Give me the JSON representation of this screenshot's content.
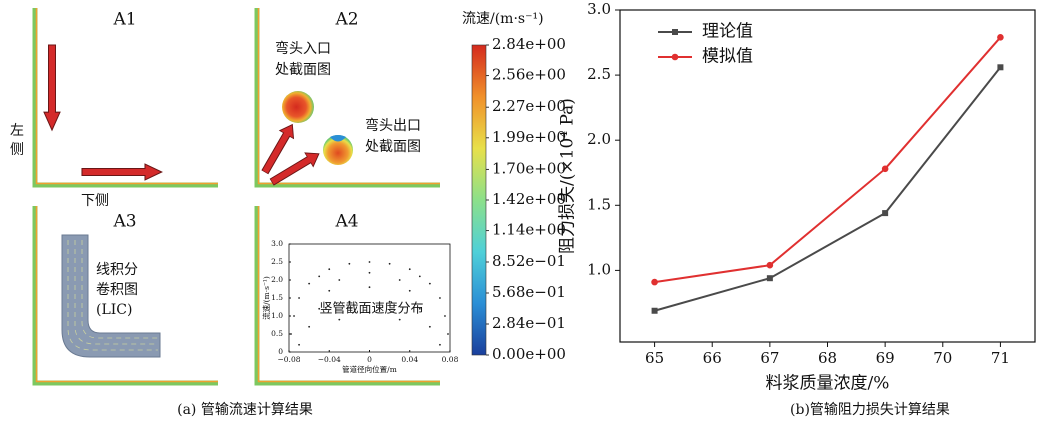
{
  "panel_a": {
    "panels": [
      "A1",
      "A2",
      "A3",
      "A4"
    ],
    "left_side_label": [
      "左",
      "侧"
    ],
    "bottom_side_label": "下侧",
    "inlet_label": [
      "弯头入口",
      "处截面图"
    ],
    "outlet_label": [
      "弯头出口",
      "处截面图"
    ],
    "lic_label": [
      "线积分",
      "卷积图",
      "(LIC)"
    ],
    "caption": "(a) 管输流速计算结果",
    "colorbar": {
      "title": "流速/(m·s⁻¹)",
      "lim": [
        0,
        2.84
      ],
      "colors": [
        "#1a3f9c",
        "#2b8fd6",
        "#4fd0d8",
        "#8ce08a",
        "#e8e04a",
        "#f0902a",
        "#d42a1e"
      ],
      "ticks": [
        {
          "value": 2.84,
          "label": "2.84e+00"
        },
        {
          "value": 2.56,
          "label": "2.56e+00"
        },
        {
          "value": 2.27,
          "label": "2.27e+00"
        },
        {
          "value": 1.99,
          "label": "1.99e+00"
        },
        {
          "value": 1.7,
          "label": "1.70e+00"
        },
        {
          "value": 1.42,
          "label": "1.42e+00"
        },
        {
          "value": 1.14,
          "label": "1.14e+00"
        },
        {
          "value": 0.852,
          "label": "8.52e−01"
        },
        {
          "value": 0.568,
          "label": "5.68e−01"
        },
        {
          "value": 0.284,
          "label": "2.84e−01"
        },
        {
          "value": 0,
          "label": "0.00e+00"
        }
      ]
    }
  },
  "chart_data": [
    {
      "type": "scatter",
      "annotation": "竖管截面速度分布",
      "xlabel": "管道径向位置/m",
      "ylabel": "流速/(m·s⁻¹)",
      "color": "#222222",
      "x": [
        -0.04,
        -0.02,
        0,
        0.02,
        0.04,
        -0.06,
        0.06,
        -0.05,
        0.05,
        -0.03,
        0,
        0.03,
        -0.07,
        0.07,
        -0.04,
        0.04,
        0,
        -0.075,
        0.075,
        -0.05,
        0.05,
        -0.02,
        0.02,
        -0.078,
        0.078,
        -0.06,
        0.06,
        -0.07,
        0.07,
        -0.03,
        0.03,
        0
      ],
      "y": [
        2.3,
        2.45,
        2.5,
        2.45,
        2.3,
        1.9,
        1.9,
        2.1,
        2.1,
        2.0,
        2.2,
        2.0,
        1.5,
        1.5,
        1.7,
        1.7,
        1.8,
        1.0,
        1.0,
        1.2,
        1.2,
        1.4,
        1.4,
        0.5,
        0.5,
        0.7,
        0.7,
        0.2,
        0.2,
        0.9,
        0.9,
        1.1
      ],
      "xlim": [
        -0.08,
        0.08
      ],
      "ylim": [
        0,
        3.0
      ],
      "xticks": [
        {
          "value": -0.08,
          "label": "−0.08"
        },
        {
          "value": -0.04,
          "label": "−0.04"
        },
        0,
        0.04,
        0.08
      ],
      "yticks": [
        0,
        0.5,
        {
          "value": 1,
          "label": "1.0"
        },
        1.5,
        {
          "value": 2,
          "label": "2.0"
        },
        2.5,
        {
          "value": 3,
          "label": "3.0"
        }
      ]
    },
    {
      "type": "line",
      "caption": "(b)管输阻力损失计算结果",
      "xlabel": "料浆质量浓度/%",
      "ylabel": "阻力损失/(×10⁴ Pa)",
      "x": [
        65,
        67,
        69,
        71
      ],
      "series": [
        {
          "name": "理论值",
          "color": "#4a4a4a",
          "marker": "square",
          "values": [
            0.69,
            0.94,
            1.44,
            2.56
          ]
        },
        {
          "name": "模拟值",
          "color": "#e03030",
          "marker": "circle",
          "values": [
            0.91,
            1.04,
            1.78,
            2.79
          ]
        }
      ],
      "xlim": [
        64.4,
        71.6
      ],
      "ylim": [
        0.45,
        3.0
      ],
      "xticks": [
        65,
        66,
        67,
        68,
        69,
        70,
        71
      ],
      "yticks": [
        {
          "value": 1,
          "label": "1.0"
        },
        1.5,
        {
          "value": 2,
          "label": "2.0"
        },
        2.5,
        {
          "value": 3,
          "label": "3.0"
        }
      ],
      "legend": "upper left"
    }
  ]
}
